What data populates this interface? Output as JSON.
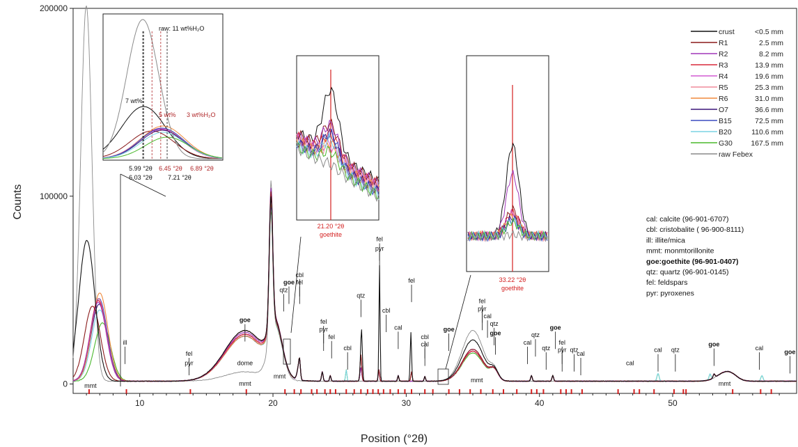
{
  "chart_data": {
    "type": "line",
    "xlabel": "Position (°2θ)",
    "ylabel": "Counts",
    "xlim": [
      5,
      59.3
    ],
    "ylim": [
      -5000,
      200000
    ],
    "x_ticks": [
      10,
      20,
      30,
      40,
      50
    ],
    "y_ticks": [
      0,
      100000,
      200000
    ],
    "y_tick_labels": [
      "0",
      "100000",
      "200000"
    ],
    "series": [
      {
        "name": "crust",
        "depth": "<0.5 mm",
        "color": "#111111",
        "peaks": {
          "mmt": [
            6.03,
            75000
          ],
          "qtz26": [
            26.65,
            30000
          ],
          "qtz27": [
            28.0,
            68000
          ],
          "dome": 27000,
          "mmt20": 68000,
          "mmt35": 22000
        }
      },
      {
        "name": "R1",
        "depth": "2.5 mm",
        "color": "#8a1a1a",
        "peaks": {
          "mmt": [
            6.45,
            40000
          ],
          "dome": 27000,
          "mmt20": 70000,
          "mmt35": 17000
        }
      },
      {
        "name": "R2",
        "depth": "8.2 mm",
        "color": "#a036b8",
        "peaks": {
          "mmt": [
            6.89,
            42000
          ],
          "dome": 26000,
          "mmt20": 72000,
          "mmt35": 17000
        }
      },
      {
        "name": "R3",
        "depth": "13.9 mm",
        "color": "#d8283a",
        "peaks": {
          "mmt": [
            6.89,
            43000
          ],
          "dome": 25000,
          "mmt20": 70000,
          "mmt35": 16000
        }
      },
      {
        "name": "R4",
        "depth": "19.6 mm",
        "color": "#d25ad2",
        "peaks": {
          "mmt": [
            6.9,
            43000
          ],
          "dome": 25000,
          "mmt20": 69000,
          "mmt35": 16000
        }
      },
      {
        "name": "R5",
        "depth": "25.3 mm",
        "color": "#f08a9a",
        "peaks": {
          "mmt": [
            6.9,
            44000
          ],
          "dome": 25000,
          "mmt20": 68000,
          "mmt35": 16000
        }
      },
      {
        "name": "R6",
        "depth": "31.0 mm",
        "color": "#f08a3c",
        "peaks": {
          "mmt": [
            7.0,
            47000
          ],
          "dome": 24000,
          "mmt20": 67000,
          "mmt35": 16000
        }
      },
      {
        "name": "O7",
        "depth": "36.6 mm",
        "color": "#3a1478",
        "peaks": {
          "mmt": [
            6.95,
            41000
          ],
          "dome": 25000,
          "mmt20": 70000,
          "mmt35": 16000
        }
      },
      {
        "name": "B15",
        "depth": "72.5 mm",
        "color": "#3c4cc0",
        "peaks": {
          "mmt": [
            6.95,
            44000
          ],
          "dome": 24000,
          "mmt20": 66000,
          "mmt35": 16000
        }
      },
      {
        "name": "B20",
        "depth": "110.6 mm",
        "color": "#7ad4e4",
        "peaks": {
          "mmt": [
            7.0,
            38000
          ],
          "dome": 24000,
          "mmt20": 65000,
          "mmt35": 16000
        }
      },
      {
        "name": "G30",
        "depth": "167.5 mm",
        "color": "#4ab82c",
        "peaks": {
          "mmt": [
            7.21,
            31000
          ],
          "dome": 24000,
          "mmt20": 64000,
          "mmt35": 15000
        }
      },
      {
        "name": "raw Febex",
        "depth": "",
        "color": "#8a8a8a",
        "peaks": {
          "mmt": [
            5.99,
            200000
          ],
          "dome": 5000,
          "mmt20": 82000,
          "mmt35": 27000
        }
      }
    ],
    "reference_peaks": [
      6.2,
      9.0,
      13.8,
      18.0,
      20.9,
      21.6,
      22.1,
      22.9,
      23.3,
      23.9,
      24.3,
      24.7,
      25.5,
      26.1,
      26.6,
      27.1,
      27.5,
      27.9,
      28.3,
      28.8,
      29.4,
      29.9,
      30.4,
      31.4,
      32.0,
      33.2,
      34.0,
      34.8,
      35.6,
      36.5,
      37.3,
      38.3,
      39.4,
      39.8,
      40.3,
      41.6,
      42.0,
      42.4,
      43.2,
      45.9,
      47.1,
      47.5,
      48.6,
      50.1,
      50.8,
      51.0,
      54.5,
      56.6,
      57.4
    ],
    "annotations": [
      {
        "text": "mmt",
        "x": 6.3,
        "y": -2000,
        "bold": false
      },
      {
        "text": "ill",
        "x": 8.9,
        "y": 21000,
        "bold": false
      },
      {
        "text": "fel",
        "x": 13.7,
        "y": 15000,
        "bold": false
      },
      {
        "text": "pyr",
        "x": 13.7,
        "y": 10000,
        "bold": false
      },
      {
        "text": "goe",
        "x": 17.9,
        "y": 33000,
        "bold": true
      },
      {
        "text": "dome",
        "x": 17.9,
        "y": 10000,
        "bold": false
      },
      {
        "text": "mmt",
        "x": 17.9,
        "y": -1000,
        "bold": false
      },
      {
        "text": "mmt",
        "x": 20.5,
        "y": 3000,
        "bold": false
      },
      {
        "text": "qtz",
        "x": 20.8,
        "y": 49000,
        "bold": false
      },
      {
        "text": "goe",
        "x": 21.2,
        "y": 53000,
        "bold": true
      },
      {
        "text": "cbl",
        "x": 22.0,
        "y": 57000,
        "bold": false
      },
      {
        "text": "fel",
        "x": 22.0,
        "y": 53000,
        "bold": false
      },
      {
        "text": "fel",
        "x": 23.8,
        "y": 32000,
        "bold": false
      },
      {
        "text": "pyr",
        "x": 23.8,
        "y": 28000,
        "bold": false
      },
      {
        "text": "fel",
        "x": 24.4,
        "y": 24000,
        "bold": false
      },
      {
        "text": "cbl",
        "x": 25.6,
        "y": 18000,
        "bold": false
      },
      {
        "text": "qtz",
        "x": 26.6,
        "y": 46000,
        "bold": false
      },
      {
        "text": "cbl",
        "x": 28.5,
        "y": 38000,
        "bold": false
      },
      {
        "text": "fel",
        "x": 28.0,
        "y": 76000,
        "bold": false
      },
      {
        "text": "pyr",
        "x": 28.0,
        "y": 71000,
        "bold": false
      },
      {
        "text": "cal",
        "x": 29.4,
        "y": 29000,
        "bold": false
      },
      {
        "text": "fel",
        "x": 30.4,
        "y": 54000,
        "bold": false
      },
      {
        "text": "cbl",
        "x": 31.4,
        "y": 24000,
        "bold": false
      },
      {
        "text": "cal",
        "x": 31.4,
        "y": 20000,
        "bold": false
      },
      {
        "text": "goe",
        "x": 33.2,
        "y": 28000,
        "bold": true
      },
      {
        "text": "mmt",
        "x": 35.3,
        "y": 1000,
        "bold": false
      },
      {
        "text": "fel",
        "x": 35.7,
        "y": 43000,
        "bold": false
      },
      {
        "text": "pyr",
        "x": 35.7,
        "y": 39000,
        "bold": false
      },
      {
        "text": "cal",
        "x": 36.1,
        "y": 35000,
        "bold": false
      },
      {
        "text": "qtz",
        "x": 36.6,
        "y": 31000,
        "bold": false
      },
      {
        "text": "goe",
        "x": 36.7,
        "y": 26000,
        "bold": true
      },
      {
        "text": "cal",
        "x": 39.1,
        "y": 21000,
        "bold": false
      },
      {
        "text": "qtz",
        "x": 39.7,
        "y": 25000,
        "bold": false
      },
      {
        "text": "qtz",
        "x": 40.5,
        "y": 18000,
        "bold": false
      },
      {
        "text": "goe",
        "x": 41.2,
        "y": 29000,
        "bold": true
      },
      {
        "text": "fel",
        "x": 41.7,
        "y": 21000,
        "bold": false
      },
      {
        "text": "pyr",
        "x": 41.7,
        "y": 17000,
        "bold": false
      },
      {
        "text": "qtz",
        "x": 42.6,
        "y": 17000,
        "bold": false
      },
      {
        "text": "cal",
        "x": 43.1,
        "y": 15000,
        "bold": false
      },
      {
        "text": "cal",
        "x": 46.8,
        "y": 10000,
        "bold": false
      },
      {
        "text": "cal",
        "x": 48.9,
        "y": 17000,
        "bold": false
      },
      {
        "text": "qtz",
        "x": 50.2,
        "y": 17000,
        "bold": false
      },
      {
        "text": "goe",
        "x": 53.1,
        "y": 20000,
        "bold": true
      },
      {
        "text": "mmt",
        "x": 53.9,
        "y": -1000,
        "bold": false
      },
      {
        "text": "cal",
        "x": 56.5,
        "y": 18000,
        "bold": false
      },
      {
        "text": "goe",
        "x": 58.8,
        "y": 16000,
        "bold": true
      }
    ],
    "legend_position": "top-right",
    "grid": false
  },
  "references": [
    {
      "text": "cal: calcite (96-901-6707)",
      "bold": false
    },
    {
      "text": "cbl: cristobalite ( 96-900-8111)",
      "bold": false
    },
    {
      "text": "ill: illite/mica",
      "bold": false
    },
    {
      "text": "mmt: monmtorillonite",
      "bold": false
    },
    {
      "text": "goe:goethite (96-901-0407)",
      "bold": true
    },
    {
      "text": "qtz: quartz (96-901-0145)",
      "bold": false
    },
    {
      "text": "fel: feldspars",
      "bold": false
    },
    {
      "text": "pyr: pyroxenes",
      "bold": false
    }
  ],
  "insets": {
    "mmt": {
      "labels": [
        {
          "text": "raw: 11 wt%H₂O",
          "color": "#111111"
        },
        {
          "text": "7 wt%",
          "color": "#111111"
        },
        {
          "text": "5 wt%",
          "color": "#b0282a"
        },
        {
          "text": "3 wt%H₂O",
          "color": "#b0282a"
        },
        {
          "text": "5.99 °2θ",
          "color": "#111111"
        },
        {
          "text": "6.45 °2θ",
          "color": "#b0282a"
        },
        {
          "text": "6.89 °2θ",
          "color": "#b0282a"
        },
        {
          "text": "6.03 °2θ",
          "color": "#111111"
        },
        {
          "text": "7.21 °2θ",
          "color": "#111111"
        }
      ]
    },
    "goe21": {
      "position": "21.20 °2θ",
      "mineral": "goethite"
    },
    "goe33": {
      "position": "33.22 °2θ",
      "mineral": "goethite"
    }
  },
  "colors": {
    "accent_red": "#d42020",
    "axis": "#222222"
  }
}
